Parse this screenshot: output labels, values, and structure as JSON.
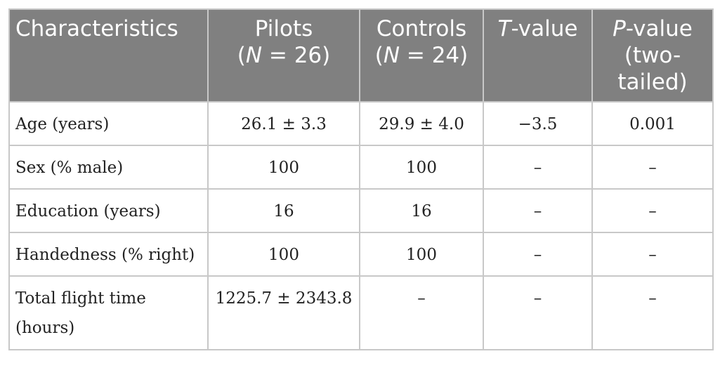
{
  "table": {
    "headers": [
      {
        "lines": [
          "Characteristics"
        ]
      },
      {
        "lines": [
          "Pilots",
          "(N = 26)"
        ]
      },
      {
        "lines": [
          "Controls",
          "(N = 24)"
        ]
      },
      {
        "lines": [
          "T-value"
        ]
      },
      {
        "lines": [
          "P-value",
          "(two-",
          "tailed)"
        ]
      }
    ],
    "header_parts": {
      "c0": "Characteristics",
      "c1_l1": "Pilots",
      "c1_l2_pre": "(",
      "c1_l2_var": "N",
      "c1_l2_post": " = 26)",
      "c2_l1": "Controls",
      "c2_l2_pre": "(",
      "c2_l2_var": "N",
      "c2_l2_post": " = 24)",
      "c3_var": "T",
      "c3_post": "-value",
      "c4_var": "P",
      "c4_post": "-value",
      "c4_l2": "(two-",
      "c4_l3": "tailed)"
    },
    "rows": [
      [
        "Age (years)",
        "26.1 ± 3.3",
        "29.9 ± 4.0",
        "−3.5",
        "0.001"
      ],
      [
        "Sex (% male)",
        "100",
        "100",
        "–",
        "–"
      ],
      [
        "Education (years)",
        "16",
        "16",
        "–",
        "–"
      ],
      [
        "Handedness (% right)",
        "100",
        "100",
        "–",
        "–"
      ],
      [
        "Total flight time (hours)",
        "1225.7 ± 2343.8",
        "–",
        "–",
        "–"
      ]
    ]
  }
}
